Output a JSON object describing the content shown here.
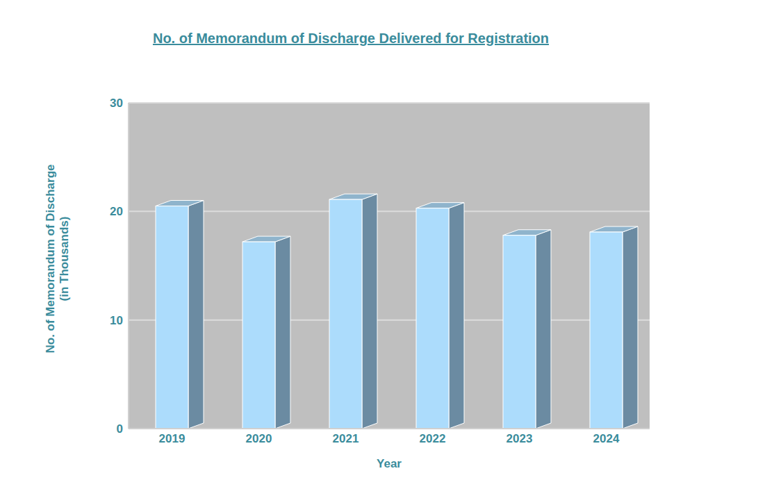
{
  "chart_data": {
    "type": "bar",
    "title": "No. of Memorandum of Discharge Delivered for Registration",
    "x_label": "Year",
    "y_label": "No. of Memorandum of Discharge (in Thousands)",
    "categories": [
      "2019",
      "2020",
      "2021",
      "2022",
      "2023",
      "2024"
    ],
    "values": [
      20.5,
      17.2,
      21.1,
      20.3,
      17.8,
      18.1
    ],
    "color": "#acdcfc",
    "ylim": [
      0,
      30
    ],
    "yticks": [
      0,
      10,
      20,
      30
    ],
    "grid": true
  }
}
